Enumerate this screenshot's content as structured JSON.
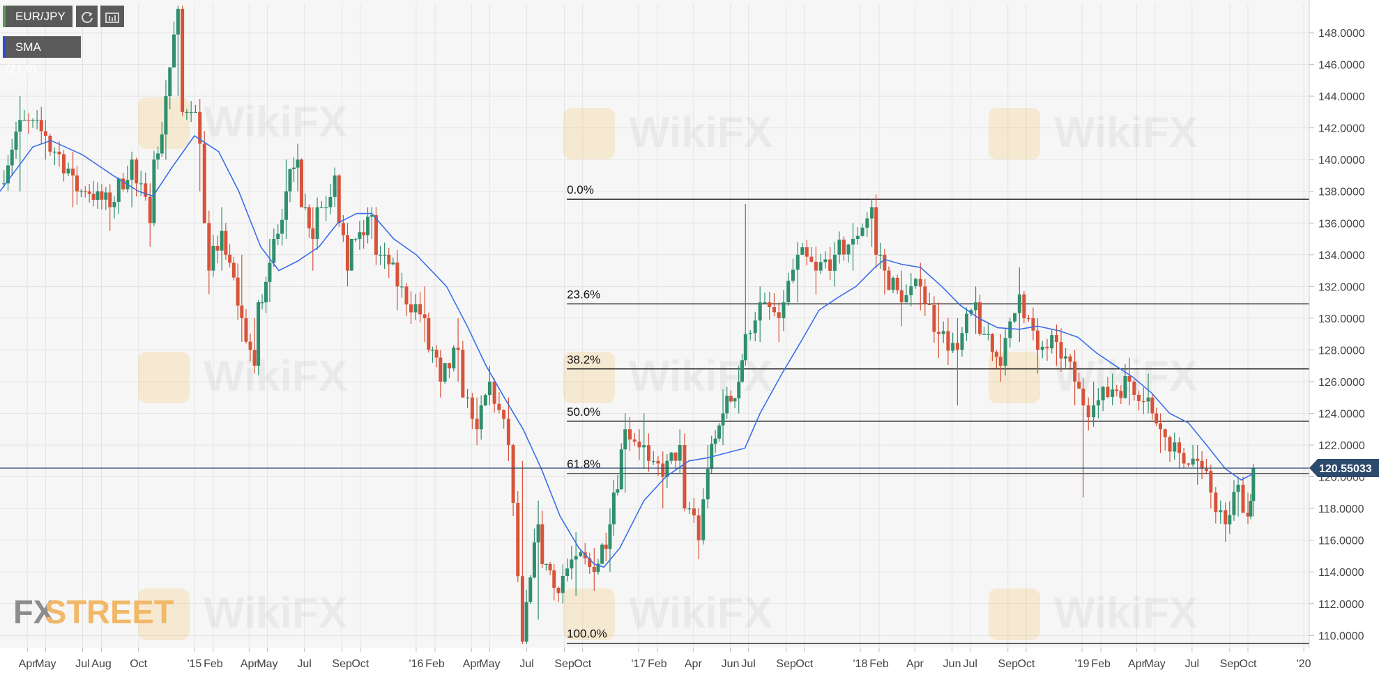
{
  "toolbar": {
    "symbol": "EUR/JPY",
    "indicator": "SMA (21,0)",
    "refresh_icon": "refresh-icon",
    "settings_icon": "chart-settings-icon"
  },
  "brand": {
    "logo_fx": "FX",
    "logo_street": "STREET",
    "watermark": "WikiFX"
  },
  "colors": {
    "up": "#2f8f6b",
    "down": "#d7533a",
    "sma": "#3a6ee8",
    "price_line": "#2c4a6e",
    "fib_line": "#000000",
    "grid": "#e4e4e4",
    "bg": "#f6f6f6"
  },
  "chart_data": {
    "type": "candlestick",
    "title": "",
    "xlabel": "",
    "ylabel": "",
    "ylim": [
      109.4,
      149.8
    ],
    "y_ticks": [
      "110.0000",
      "112.0000",
      "114.0000",
      "116.0000",
      "118.0000",
      "120.0000",
      "122.0000",
      "124.0000",
      "126.0000",
      "128.0000",
      "130.0000",
      "132.0000",
      "134.0000",
      "136.0000",
      "138.0000",
      "140.0000",
      "142.0000",
      "144.0000",
      "146.0000",
      "148.0000"
    ],
    "y_tick_values": [
      110,
      112,
      114,
      116,
      118,
      120,
      122,
      124,
      126,
      128,
      130,
      132,
      134,
      136,
      138,
      140,
      142,
      144,
      146,
      148
    ],
    "x_ticks": [
      "Apr",
      "May",
      "Jul",
      "Aug",
      "Oct",
      "'15",
      "Feb",
      "Apr",
      "May",
      "Jul",
      "Sep",
      "Oct",
      "'16",
      "Feb",
      "Apr",
      "May",
      "Jul",
      "Sep",
      "Oct",
      "'17",
      "Feb",
      "Apr",
      "Jun",
      "Jul",
      "Sep",
      "Oct",
      "'18",
      "Feb",
      "Apr",
      "Jun",
      "Jul",
      "Sep",
      "Oct",
      "'19",
      "Feb",
      "Apr",
      "May",
      "Jul",
      "Sep",
      "Oct",
      "'20"
    ],
    "x_tick_dates": [
      "2014-04-01",
      "2014-05-01",
      "2014-07-01",
      "2014-08-01",
      "2014-10-01",
      "2015-01-01",
      "2015-02-01",
      "2015-04-01",
      "2015-05-01",
      "2015-07-01",
      "2015-09-01",
      "2015-10-01",
      "2016-01-01",
      "2016-02-01",
      "2016-04-01",
      "2016-05-01",
      "2016-07-01",
      "2016-09-01",
      "2016-10-01",
      "2017-01-01",
      "2017-02-01",
      "2017-04-01",
      "2017-06-01",
      "2017-07-01",
      "2017-09-01",
      "2017-10-01",
      "2018-01-01",
      "2018-02-01",
      "2018-04-01",
      "2018-06-01",
      "2018-07-01",
      "2018-09-01",
      "2018-10-01",
      "2019-01-01",
      "2019-02-01",
      "2019-04-01",
      "2019-05-01",
      "2019-07-01",
      "2019-09-01",
      "2019-10-01",
      "2020-01-01"
    ],
    "x_range": [
      "2014-02-15",
      "2020-01-10"
    ],
    "current_price": "120.55033",
    "current_value": 120.55,
    "fibonacci": [
      {
        "label": "0.0%",
        "value": 137.5
      },
      {
        "label": "23.6%",
        "value": 130.9
      },
      {
        "label": "38.2%",
        "value": 126.8
      },
      {
        "label": "50.0%",
        "value": 123.5
      },
      {
        "label": "61.8%",
        "value": 120.2
      },
      {
        "label": "100.0%",
        "value": 109.5
      }
    ],
    "fib_start_date": "2016-09-05",
    "series": [
      {
        "type": "candles",
        "bars_per_point": 6,
        "anchors": [
          [
            "2014-02-15",
            138.5,
            136,
            139.5
          ],
          [
            "2014-03-20",
            142.5,
            138,
            144
          ],
          [
            "2014-05-01",
            141.5,
            140,
            142.5
          ],
          [
            "2014-06-15",
            139,
            137,
            140.5
          ],
          [
            "2014-08-15",
            137,
            135.5,
            138
          ],
          [
            "2014-09-20",
            140,
            137,
            140.5
          ],
          [
            "2014-10-20",
            136,
            134.5,
            138.5
          ],
          [
            "2014-11-15",
            144,
            140,
            145
          ],
          [
            "2014-12-05",
            149.5,
            144,
            149.8
          ],
          [
            "2015-01-10",
            141,
            138,
            143
          ],
          [
            "2015-01-25",
            133,
            131.5,
            136
          ],
          [
            "2015-02-15",
            135.5,
            133,
            137
          ],
          [
            "2015-03-20",
            130,
            128.5,
            134
          ],
          [
            "2015-04-10",
            127,
            126.5,
            130
          ],
          [
            "2015-05-05",
            133.5,
            131,
            135
          ],
          [
            "2015-06-01",
            138,
            135,
            140
          ],
          [
            "2015-06-20",
            140,
            138,
            141
          ],
          [
            "2015-07-15",
            135,
            133,
            137
          ],
          [
            "2015-08-20",
            139,
            137,
            139.5
          ],
          [
            "2015-09-10",
            133,
            132,
            136
          ],
          [
            "2015-10-20",
            136.5,
            135,
            137
          ],
          [
            "2015-12-01",
            132,
            130.5,
            134
          ],
          [
            "2016-01-15",
            130,
            128.5,
            132
          ],
          [
            "2016-02-10",
            126,
            125,
            128
          ],
          [
            "2016-03-10",
            128,
            126,
            130
          ],
          [
            "2016-04-10",
            123,
            122,
            125
          ],
          [
            "2016-05-01",
            126,
            124.5,
            127
          ],
          [
            "2016-06-01",
            122,
            121,
            125
          ],
          [
            "2016-06-24",
            109.6,
            109.5,
            121
          ],
          [
            "2016-07-20",
            117,
            111,
            118.5
          ],
          [
            "2016-08-15",
            113,
            112.2,
            114.5
          ],
          [
            "2016-09-20",
            115,
            112.5,
            116.5
          ],
          [
            "2016-10-20",
            114,
            112.8,
            115.5
          ],
          [
            "2016-11-15",
            117,
            114,
            118
          ],
          [
            "2016-12-10",
            123,
            119,
            124
          ],
          [
            "2017-01-10",
            122,
            120.5,
            124
          ],
          [
            "2017-02-10",
            120,
            118,
            121
          ],
          [
            "2017-03-10",
            122,
            120.5,
            123
          ],
          [
            "2017-04-10",
            116,
            114.8,
            118
          ],
          [
            "2017-04-25",
            120.5,
            118,
            122
          ],
          [
            "2017-05-20",
            124,
            122,
            125.5
          ],
          [
            "2017-06-15",
            126,
            124,
            127
          ],
          [
            "2017-06-26",
            129,
            127,
            137.2
          ],
          [
            "2017-07-20",
            131,
            128.5,
            132
          ],
          [
            "2017-08-20",
            130,
            128.5,
            131
          ],
          [
            "2017-09-20",
            134,
            131,
            134.8
          ],
          [
            "2017-10-20",
            133,
            131.5,
            134.5
          ],
          [
            "2017-11-20",
            134,
            132,
            134.8
          ],
          [
            "2017-12-20",
            135,
            133,
            136
          ],
          [
            "2018-01-20",
            137,
            134.5,
            137.5
          ],
          [
            "2018-02-10",
            133,
            131.5,
            134
          ],
          [
            "2018-03-10",
            131,
            129.5,
            133
          ],
          [
            "2018-04-10",
            132,
            130.5,
            133.5
          ],
          [
            "2018-05-10",
            129,
            127.5,
            131
          ],
          [
            "2018-06-10",
            128,
            124.5,
            130
          ],
          [
            "2018-07-10",
            131,
            129,
            132
          ],
          [
            "2018-08-20",
            127,
            126,
            129
          ],
          [
            "2018-09-20",
            131.5,
            128.5,
            133.2
          ],
          [
            "2018-10-20",
            128,
            126.5,
            130
          ],
          [
            "2018-11-20",
            128.5,
            127,
            129.5
          ],
          [
            "2018-12-20",
            126,
            124.5,
            128
          ],
          [
            "2019-01-03",
            124.5,
            118.7,
            126
          ],
          [
            "2019-01-20",
            124.5,
            123.5,
            126
          ],
          [
            "2019-02-20",
            125.5,
            124.5,
            126.5
          ],
          [
            "2019-03-20",
            126,
            124.5,
            127.5
          ],
          [
            "2019-04-20",
            125,
            124,
            126.5
          ],
          [
            "2019-05-10",
            123,
            121.5,
            124
          ],
          [
            "2019-06-10",
            121.5,
            120.5,
            122.5
          ],
          [
            "2019-07-10",
            121,
            119.5,
            122
          ],
          [
            "2019-08-01",
            119,
            118,
            120.5
          ],
          [
            "2019-08-25",
            117,
            115.9,
            118
          ],
          [
            "2019-09-15",
            119.5,
            117.5,
            120
          ],
          [
            "2019-10-01",
            117.5,
            117,
            119
          ],
          [
            "2019-10-10",
            120.55,
            117.5,
            120.8
          ]
        ]
      },
      {
        "name": "SMA (21,0)",
        "type": "line",
        "points": [
          [
            "2014-02-15",
            138
          ],
          [
            "2014-04-10",
            140.8
          ],
          [
            "2014-05-10",
            141.2
          ],
          [
            "2014-07-01",
            140.3
          ],
          [
            "2014-08-20",
            139
          ],
          [
            "2014-10-01",
            138
          ],
          [
            "2014-10-25",
            137.7
          ],
          [
            "2014-11-25",
            139.5
          ],
          [
            "2015-01-01",
            141.5
          ],
          [
            "2015-02-10",
            140.5
          ],
          [
            "2015-03-15",
            138
          ],
          [
            "2015-04-20",
            134.5
          ],
          [
            "2015-05-20",
            133
          ],
          [
            "2015-06-20",
            133.6
          ],
          [
            "2015-07-25",
            134.5
          ],
          [
            "2015-08-25",
            136
          ],
          [
            "2015-09-25",
            136.6
          ],
          [
            "2015-10-20",
            136.6
          ],
          [
            "2015-11-25",
            135
          ],
          [
            "2016-01-01",
            134
          ],
          [
            "2016-02-20",
            132
          ],
          [
            "2016-03-25",
            129.5
          ],
          [
            "2016-04-25",
            127
          ],
          [
            "2016-05-25",
            125
          ],
          [
            "2016-06-25",
            123
          ],
          [
            "2016-07-25",
            120.5
          ],
          [
            "2016-08-25",
            117.5
          ],
          [
            "2016-09-25",
            115.5
          ],
          [
            "2016-10-20",
            114.5
          ],
          [
            "2016-11-05",
            114.3
          ],
          [
            "2016-12-01",
            115.5
          ],
          [
            "2017-01-10",
            118.5
          ],
          [
            "2017-02-15",
            120
          ],
          [
            "2017-03-25",
            121
          ],
          [
            "2017-04-25",
            121.2
          ],
          [
            "2017-05-25",
            121.5
          ],
          [
            "2017-06-25",
            121.8
          ],
          [
            "2017-07-20",
            124
          ],
          [
            "2017-08-25",
            126.5
          ],
          [
            "2017-09-25",
            128.5
          ],
          [
            "2017-10-25",
            130.5
          ],
          [
            "2017-11-25",
            131.3
          ],
          [
            "2017-12-25",
            132
          ],
          [
            "2018-01-25",
            133.2
          ],
          [
            "2018-02-10",
            133.7
          ],
          [
            "2018-03-10",
            133.4
          ],
          [
            "2018-04-10",
            133.2
          ],
          [
            "2018-05-15",
            132
          ],
          [
            "2018-06-15",
            130.8
          ],
          [
            "2018-07-15",
            130
          ],
          [
            "2018-08-15",
            129.4
          ],
          [
            "2018-09-20",
            129.3
          ],
          [
            "2018-10-20",
            129.5
          ],
          [
            "2018-11-25",
            129.2
          ],
          [
            "2018-12-25",
            128.8
          ],
          [
            "2019-01-25",
            127.8
          ],
          [
            "2019-02-25",
            127
          ],
          [
            "2019-03-25",
            126.3
          ],
          [
            "2019-04-25",
            125.3
          ],
          [
            "2019-05-25",
            124
          ],
          [
            "2019-06-25",
            123.4
          ],
          [
            "2019-07-25",
            122
          ],
          [
            "2019-08-25",
            120.5
          ],
          [
            "2019-09-20",
            119.8
          ],
          [
            "2019-10-10",
            120.2
          ]
        ]
      }
    ]
  }
}
